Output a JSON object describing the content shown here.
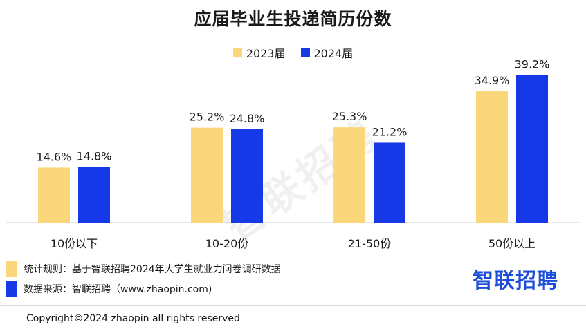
{
  "chart_data": {
    "type": "bar",
    "title": "应届毕业生投递简历份数",
    "categories": [
      "10份以下",
      "10-20份",
      "21-50份",
      "50份以上"
    ],
    "series": [
      {
        "name": "2023届",
        "values": [
          14.6,
          25.2,
          25.3,
          34.9
        ],
        "labels": [
          "14.6%",
          "25.2%",
          "25.3%",
          "34.9%"
        ],
        "color": "#FAD77A"
      },
      {
        "name": "2024届",
        "values": [
          14.8,
          24.8,
          21.2,
          39.2
        ],
        "labels": [
          "14.8%",
          "24.8%",
          "21.2%",
          "39.2%"
        ],
        "color": "#1638E6"
      }
    ],
    "unit": "%",
    "ylim": [
      0,
      42
    ],
    "grid": false,
    "legend_position": "top-center"
  },
  "watermark": "智联招聘",
  "notes": {
    "stats_rule": "统计规则：基于智联招聘2024年大学生就业力问卷调研数据",
    "source": "数据来源：智联招聘（www.zhaopin.com)"
  },
  "brand": "智联招聘",
  "copyright": "Copyright©2024 zhaopin all rights reserved"
}
